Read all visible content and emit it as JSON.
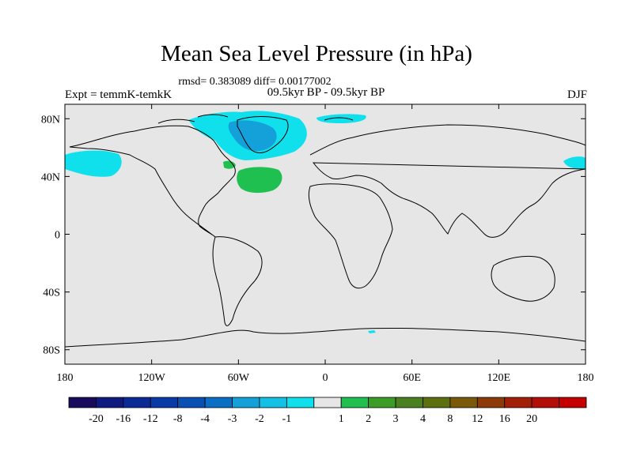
{
  "title": "Mean Sea Level Pressure (in hPa)",
  "stats_line": "rmsd= 0.383089 diff= 0.00177002",
  "left_label": "Expt = temmK-temkK",
  "center_label": "09.5kyr BP - 09.5kyr BP",
  "season": "DJF",
  "lat_ticks": [
    "80N",
    "40N",
    "0",
    "40S",
    "80S"
  ],
  "lon_ticks": [
    "180",
    "120W",
    "60W",
    "0",
    "60E",
    "120E",
    "180"
  ],
  "colorbar": {
    "colors": [
      "#1a0a5e",
      "#0e1a80",
      "#0a2a96",
      "#0a3aa6",
      "#0a50b4",
      "#0a6ec4",
      "#14a0d8",
      "#14c0e6",
      "#10e0ec",
      "#e6e6e6",
      "#20c050",
      "#3c9c28",
      "#4a8020",
      "#5c7010",
      "#7a5a0a",
      "#8c3a08",
      "#a22008",
      "#b40e08",
      "#c40000"
    ],
    "labels": [
      "-20",
      "-16",
      "-12",
      "-8",
      "-4",
      "-3",
      "-2",
      "-1",
      "1",
      "2",
      "3",
      "4",
      "8",
      "12",
      "16",
      "20"
    ]
  },
  "anomalies": [
    {
      "name": "north-pacific-negative",
      "class": "-2 to -1"
    },
    {
      "name": "greenland-negative",
      "class": "-3 to -2"
    },
    {
      "name": "north-atlantic-positive",
      "class": "1 to 2"
    }
  ]
}
